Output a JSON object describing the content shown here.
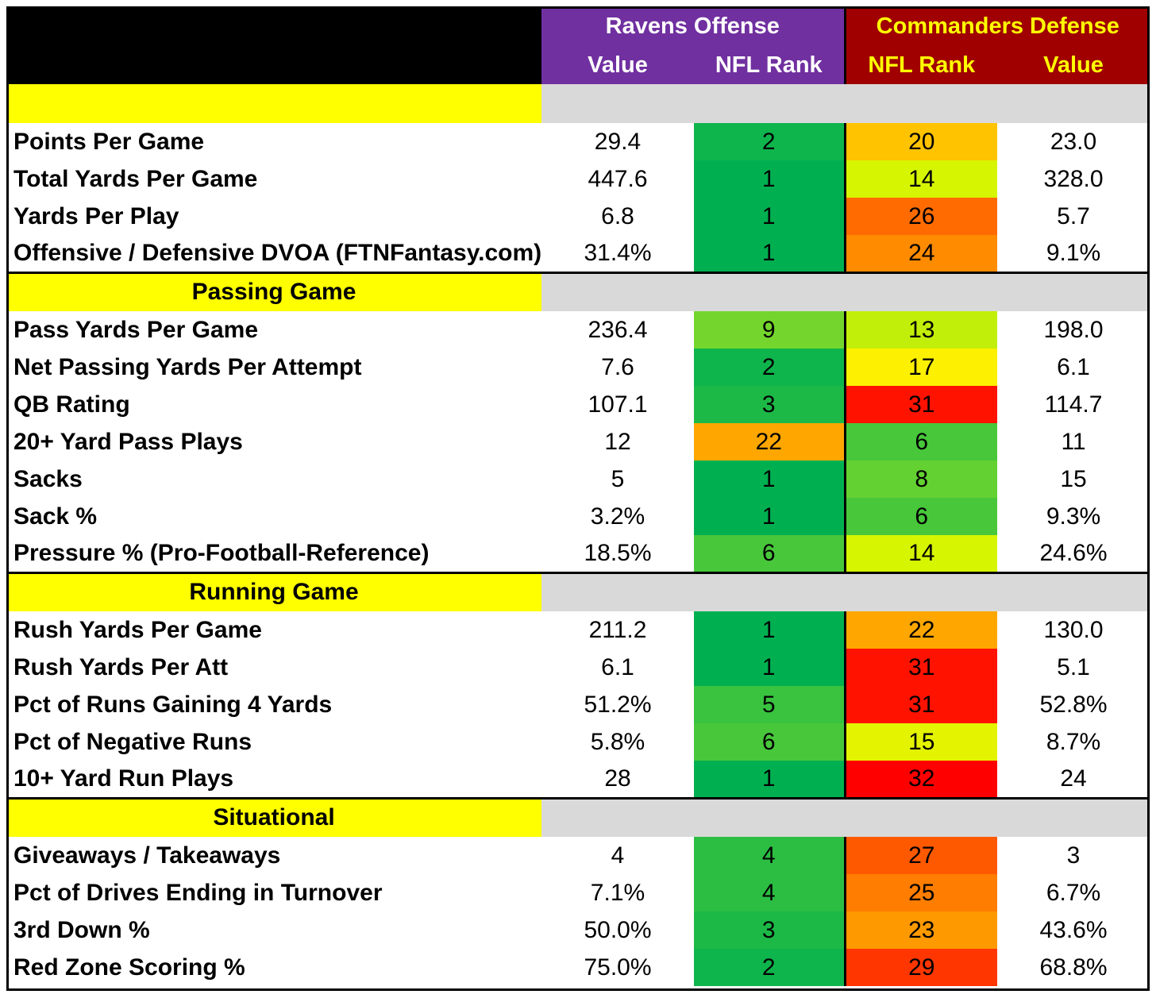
{
  "header": {
    "ravens_title": "Ravens Offense",
    "commanders_title": "Commanders Defense",
    "ravens_cols": [
      "Value",
      "NFL Rank"
    ],
    "commanders_cols": [
      "NFL Rank",
      "Value"
    ]
  },
  "colors": {
    "ravens_purple": "#7030a0",
    "commanders_red": "#a00000",
    "section_yellow": "#ffff00",
    "section_grey": "#d9d9d9"
  },
  "sections": [
    {
      "title": "",
      "rows": [
        {
          "label": "Points Per Game",
          "r_val": "29.4",
          "r_rank": "2",
          "c_rank": "20",
          "c_val": "23.0"
        },
        {
          "label": "Total Yards Per Game",
          "r_val": "447.6",
          "r_rank": "1",
          "c_rank": "14",
          "c_val": "328.0"
        },
        {
          "label": "Yards Per Play",
          "r_val": "6.8",
          "r_rank": "1",
          "c_rank": "26",
          "c_val": "5.7"
        },
        {
          "label": "Offensive / Defensive DVOA (FTNFantasy.com)",
          "r_val": "31.4%",
          "r_rank": "1",
          "c_rank": "24",
          "c_val": "9.1%"
        }
      ]
    },
    {
      "title": "Passing Game",
      "rows": [
        {
          "label": "Pass Yards Per Game",
          "r_val": "236.4",
          "r_rank": "9",
          "c_rank": "13",
          "c_val": "198.0"
        },
        {
          "label": "Net Passing Yards Per Attempt",
          "r_val": "7.6",
          "r_rank": "2",
          "c_rank": "17",
          "c_val": "6.1"
        },
        {
          "label": "QB Rating",
          "r_val": "107.1",
          "r_rank": "3",
          "c_rank": "31",
          "c_val": "114.7"
        },
        {
          "label": "20+ Yard Pass Plays",
          "r_val": "12",
          "r_rank": "22",
          "c_rank": "6",
          "c_val": "11"
        },
        {
          "label": "Sacks",
          "r_val": "5",
          "r_rank": "1",
          "c_rank": "8",
          "c_val": "15"
        },
        {
          "label": "Sack %",
          "r_val": "3.2%",
          "r_rank": "1",
          "c_rank": "6",
          "c_val": "9.3%"
        },
        {
          "label": "Pressure % (Pro-Football-Reference)",
          "r_val": "18.5%",
          "r_rank": "6",
          "c_rank": "14",
          "c_val": "24.6%"
        }
      ]
    },
    {
      "title": "Running Game",
      "rows": [
        {
          "label": "Rush Yards Per Game",
          "r_val": "211.2",
          "r_rank": "1",
          "c_rank": "22",
          "c_val": "130.0"
        },
        {
          "label": "Rush Yards Per Att",
          "r_val": "6.1",
          "r_rank": "1",
          "c_rank": "31",
          "c_val": "5.1"
        },
        {
          "label": "Pct of Runs Gaining 4 Yards",
          "r_val": "51.2%",
          "r_rank": "5",
          "c_rank": "31",
          "c_val": "52.8%"
        },
        {
          "label": "Pct of Negative Runs",
          "r_val": "5.8%",
          "r_rank": "6",
          "c_rank": "15",
          "c_val": "8.7%"
        },
        {
          "label": "10+ Yard Run Plays",
          "r_val": "28",
          "r_rank": "1",
          "c_rank": "32",
          "c_val": "24"
        }
      ]
    },
    {
      "title": "Situational",
      "rows": [
        {
          "label": "Giveaways / Takeaways",
          "r_val": "4",
          "r_rank": "4",
          "c_rank": "27",
          "c_val": "3"
        },
        {
          "label": "Pct of Drives Ending in Turnover",
          "r_val": "7.1%",
          "r_rank": "4",
          "c_rank": "25",
          "c_val": "6.7%"
        },
        {
          "label": "3rd Down %",
          "r_val": "50.0%",
          "r_rank": "3",
          "c_rank": "23",
          "c_val": "43.6%"
        },
        {
          "label": "Red Zone Scoring %",
          "r_val": "75.0%",
          "r_rank": "2",
          "c_rank": "29",
          "c_val": "68.8%"
        }
      ]
    }
  ]
}
